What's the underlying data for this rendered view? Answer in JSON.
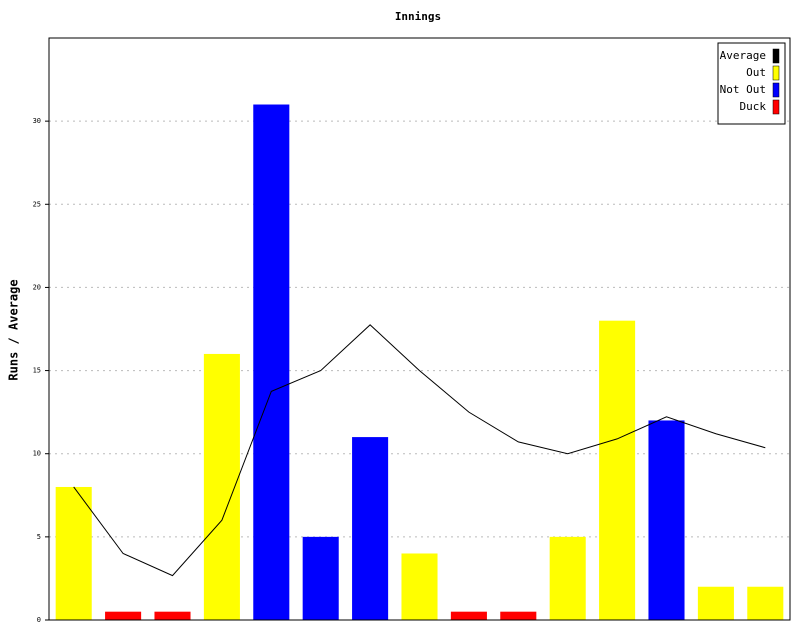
{
  "chart_data": {
    "type": "bar",
    "title": "Innings",
    "y_label": "Runs / Average",
    "categories": [
      null,
      null,
      null,
      null,
      null,
      null,
      null,
      null,
      null,
      null,
      null,
      null,
      null,
      null,
      null
    ],
    "series": [
      {
        "name": "Average",
        "color": "#000000",
        "type": "line",
        "values": [
          8,
          4,
          2.67,
          6,
          13.75,
          15,
          17.75,
          15,
          12.5,
          10.71,
          10,
          10.89,
          12.22,
          11.2,
          10.36
        ]
      },
      {
        "name": "Out",
        "color": "#ffff00",
        "values": [
          8,
          null,
          null,
          16,
          null,
          null,
          null,
          4,
          null,
          null,
          5,
          18,
          null,
          2,
          2
        ]
      },
      {
        "name": "Not Out",
        "color": "#0000ff",
        "values": [
          null,
          null,
          null,
          null,
          31,
          5,
          11,
          null,
          null,
          null,
          null,
          null,
          12,
          null,
          null
        ]
      },
      {
        "name": "Duck",
        "color": "#ff0000",
        "values": [
          null,
          0.5,
          0.5,
          null,
          null,
          null,
          null,
          null,
          0.5,
          0.5,
          null,
          null,
          null,
          null,
          null
        ]
      }
    ],
    "ylim": [
      0,
      35
    ],
    "yticks": [
      0,
      5,
      10,
      15,
      20,
      25,
      30
    ],
    "grid": true,
    "legend": "top-right"
  }
}
